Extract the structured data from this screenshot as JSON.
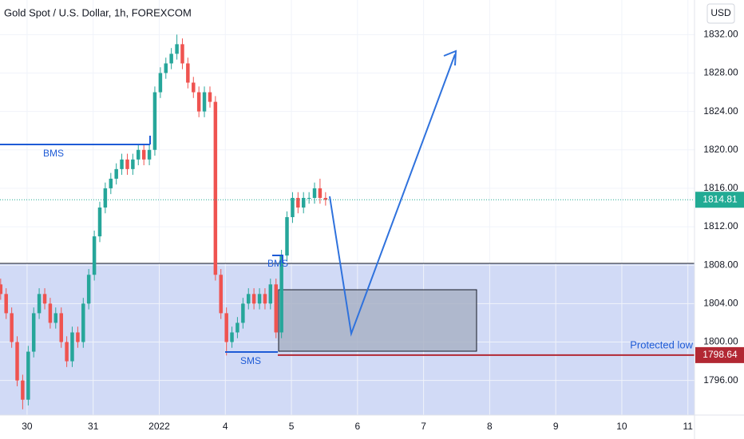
{
  "chart_data": {
    "type": "candlestick",
    "title": "Gold Spot / U.S. Dollar, 1h, FOREXCOM",
    "currency": "USD",
    "xlim": [
      -0.41,
      10.1
    ],
    "ylim": [
      1792.4,
      1835.6
    ],
    "xticks": [
      {
        "value": 0,
        "label": "30"
      },
      {
        "value": 1,
        "label": "31"
      },
      {
        "value": 2,
        "label": "2022"
      },
      {
        "value": 3,
        "label": "4"
      },
      {
        "value": 4,
        "label": "5"
      },
      {
        "value": 5,
        "label": "6"
      },
      {
        "value": 6,
        "label": "7"
      },
      {
        "value": 7,
        "label": "8"
      },
      {
        "value": 8,
        "label": "9"
      },
      {
        "value": 9,
        "label": "10"
      },
      {
        "value": 10,
        "label": "11"
      }
    ],
    "yticks": [
      {
        "value": 1796,
        "label": "1796.00"
      },
      {
        "value": 1800,
        "label": "1800.00"
      },
      {
        "value": 1804,
        "label": "1804.00"
      },
      {
        "value": 1808,
        "label": "1808.00"
      },
      {
        "value": 1812,
        "label": "1812.00"
      },
      {
        "value": 1816,
        "label": "1816.00"
      },
      {
        "value": 1820,
        "label": "1820.00"
      },
      {
        "value": 1824,
        "label": "1824.00"
      },
      {
        "value": 1828,
        "label": "1828.00"
      },
      {
        "value": 1832,
        "label": "1832.00"
      }
    ],
    "grid": true,
    "up_color": "#26a69a",
    "down_color": "#ef5350",
    "x": [
      -0.4,
      -0.317,
      -0.233,
      -0.15,
      -0.067,
      0.017,
      0.1,
      0.183,
      0.267,
      0.35,
      0.433,
      0.517,
      0.6,
      0.683,
      0.767,
      0.85,
      0.933,
      1.017,
      1.1,
      1.183,
      1.267,
      1.35,
      1.433,
      1.517,
      1.6,
      1.683,
      1.767,
      1.85,
      1.933,
      2.017,
      2.1,
      2.183,
      2.267,
      2.35,
      2.433,
      2.517,
      2.6,
      2.683,
      2.767,
      2.85,
      2.933,
      3.017,
      3.1,
      3.183,
      3.267,
      3.35,
      3.433,
      3.517,
      3.6,
      3.683,
      3.767,
      3.85,
      3.933,
      4.017,
      4.1,
      4.183,
      4.267,
      4.35,
      4.433,
      4.517
    ],
    "open": [
      1806,
      1805,
      1803,
      1800,
      1796,
      1794,
      1799,
      1803,
      1805,
      1804,
      1802,
      1803,
      1800,
      1798,
      1801,
      1800,
      1804,
      1807,
      1811,
      1814,
      1816,
      1817,
      1818,
      1819,
      1818,
      1819,
      1820,
      1819,
      1820,
      1826,
      1828,
      1829,
      1830,
      1831,
      1829,
      1827,
      1826,
      1824,
      1826,
      1825,
      1807,
      1803,
      1800,
      1801,
      1802,
      1804,
      1805,
      1804,
      1805,
      1804,
      1806,
      1801,
      1809,
      1813,
      1815,
      1814,
      1815,
      1815,
      1816,
      1815
    ],
    "high": [
      1806.6,
      1805.6,
      1803.6,
      1800.6,
      1796.6,
      1799.6,
      1803.6,
      1805.6,
      1805.6,
      1804.6,
      1803.6,
      1803.6,
      1800.6,
      1801.6,
      1801.6,
      1804.6,
      1807.6,
      1811.6,
      1814.6,
      1816.6,
      1817.6,
      1818.6,
      1819.6,
      1819.6,
      1819.6,
      1820.6,
      1820.6,
      1820.6,
      1826.6,
      1828.6,
      1829.6,
      1830.6,
      1832,
      1831.6,
      1829.6,
      1827.6,
      1826.6,
      1826.6,
      1826.6,
      1825.6,
      1807.6,
      1803.6,
      1801.6,
      1802.6,
      1804.6,
      1805.6,
      1805.6,
      1805.6,
      1805.6,
      1806.6,
      1806.6,
      1809.6,
      1813.6,
      1815.6,
      1815.6,
      1815.6,
      1815.6,
      1816.6,
      1817,
      1815.6
    ],
    "low": [
      1804.4,
      1802.4,
      1799.4,
      1795.4,
      1793,
      1793.4,
      1798.4,
      1802.4,
      1803.4,
      1801.4,
      1801.4,
      1799.4,
      1797.4,
      1797.4,
      1799.4,
      1799.4,
      1803.4,
      1806.4,
      1810.4,
      1813.4,
      1815.4,
      1816.4,
      1817.4,
      1817.4,
      1817.4,
      1818.4,
      1818.4,
      1818.4,
      1819.4,
      1825.4,
      1827.4,
      1828.4,
      1829.4,
      1828.4,
      1826.4,
      1825.4,
      1823.4,
      1823.4,
      1824.4,
      1806.4,
      1802.4,
      1798.6,
      1799.4,
      1800.4,
      1801.4,
      1803.4,
      1803.4,
      1803.4,
      1803.4,
      1803.4,
      1800.4,
      1800.4,
      1808.4,
      1812.4,
      1813.4,
      1813.4,
      1814.4,
      1814.4,
      1814.4,
      1814.2
    ],
    "close": [
      1805,
      1803,
      1800,
      1796,
      1794,
      1799,
      1803,
      1805,
      1804,
      1802,
      1803,
      1800,
      1798,
      1801,
      1800,
      1804,
      1807,
      1811,
      1814,
      1816,
      1817,
      1818,
      1819,
      1818,
      1819,
      1820,
      1819,
      1820,
      1826,
      1828,
      1829,
      1830,
      1831,
      1829,
      1827,
      1826,
      1824,
      1826,
      1825,
      1807,
      1803,
      1800,
      1801,
      1802,
      1804,
      1805,
      1804,
      1805,
      1804,
      1806,
      1801,
      1809,
      1813,
      1815,
      1814,
      1815,
      1815,
      1816,
      1815,
      1814.8
    ],
    "last_price": {
      "value": 1814.81,
      "label": "1814.81",
      "color": "#22ab94"
    },
    "protected_low": {
      "value": 1798.64,
      "label": "1798.64",
      "text": "Protected low",
      "color": "#b22833"
    },
    "annotations": [
      "BMS",
      "BMS",
      "SMS"
    ]
  }
}
